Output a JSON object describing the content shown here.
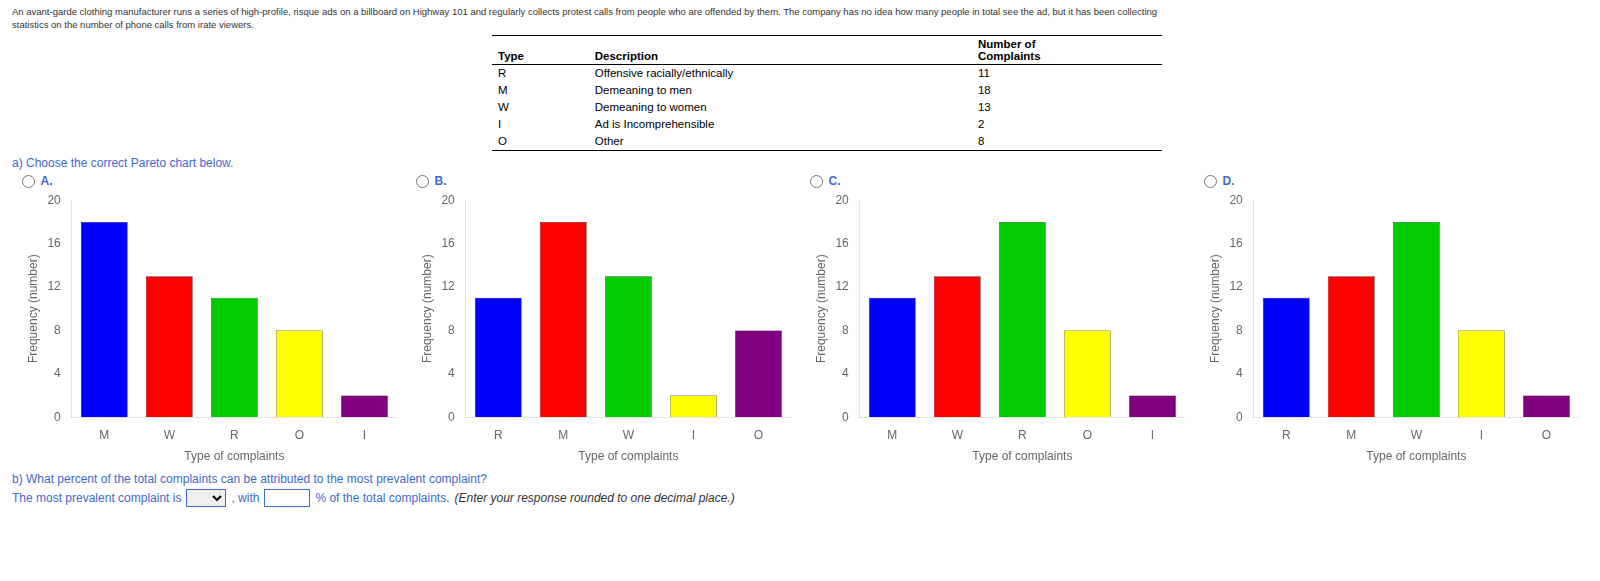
{
  "annotations": [
    "An avant-garde clothing manufacturer runs a series of high-profile, risque ads on a billboard on Highway 101 and regularly collects protest calls from people who are offended by them. The company has no idea how many people in total see the ad, but it has been collecting",
    "statistics on the number of phone calls from irate viewers.",
    "a) Choose the correct Pareto chart below.",
    "b) What percent of the total complaints can be attributed to the most prevalent complaint?",
    "The most prevalent complaint is",
    ", with",
    "% of the total complaints.",
    "(Enter your response rounded to one decimal place.)"
  ],
  "table": {
    "columns": [
      "Type",
      "Description",
      "Number of\nComplaints"
    ],
    "rows": [
      [
        "R",
        "Offensive racially/ethnically",
        11
      ],
      [
        "M",
        "Demeaning to men",
        18
      ],
      [
        "W",
        "Demeaning to women",
        13
      ],
      [
        "I",
        "Ad is Incomprehensible",
        2
      ],
      [
        "O",
        "Other",
        8
      ]
    ]
  },
  "chart_data": [
    {
      "type": "bar",
      "title": "A.",
      "categories": [
        "M",
        "W",
        "R",
        "O",
        "I"
      ],
      "values": [
        18,
        13,
        11,
        8,
        2
      ],
      "colors": [
        "#0000FF",
        "#FF0000",
        "#00CC00",
        "#FFFF00",
        "#800080"
      ],
      "xlabel": "Type of complaints",
      "ylabel": "Frequency (number)",
      "ylim": [
        0,
        20
      ],
      "yticks": [
        0,
        4,
        8,
        12,
        16,
        20
      ],
      "grid": false
    },
    {
      "type": "bar",
      "title": "B.",
      "categories": [
        "R",
        "M",
        "W",
        "I",
        "O"
      ],
      "values": [
        11,
        18,
        13,
        2,
        8
      ],
      "colors": [
        "#0000FF",
        "#FF0000",
        "#00CC00",
        "#FFFF00",
        "#800080"
      ],
      "xlabel": "Type of complaints",
      "ylabel": "Frequency (number)",
      "ylim": [
        0,
        20
      ],
      "yticks": [
        0,
        4,
        8,
        12,
        16,
        20
      ],
      "grid": false
    },
    {
      "type": "bar",
      "title": "C.",
      "categories": [
        "M",
        "W",
        "R",
        "O",
        "I"
      ],
      "values": [
        11,
        13,
        18,
        8,
        2
      ],
      "colors": [
        "#0000FF",
        "#FF0000",
        "#00CC00",
        "#FFFF00",
        "#800080"
      ],
      "xlabel": "Type of complaints",
      "ylabel": "Frequency (number)",
      "ylim": [
        0,
        20
      ],
      "yticks": [
        0,
        4,
        8,
        12,
        16,
        20
      ],
      "grid": false
    },
    {
      "type": "bar",
      "title": "D.",
      "categories": [
        "R",
        "M",
        "W",
        "I",
        "O"
      ],
      "values": [
        11,
        13,
        18,
        8,
        2
      ],
      "colors": [
        "#0000FF",
        "#FF0000",
        "#00CC00",
        "#FFFF00",
        "#800080"
      ],
      "xlabel": "Type of complaints",
      "ylabel": "Frequency (number)",
      "ylim": [
        0,
        20
      ],
      "yticks": [
        0,
        4,
        8,
        12,
        16,
        20
      ],
      "grid": false
    }
  ]
}
